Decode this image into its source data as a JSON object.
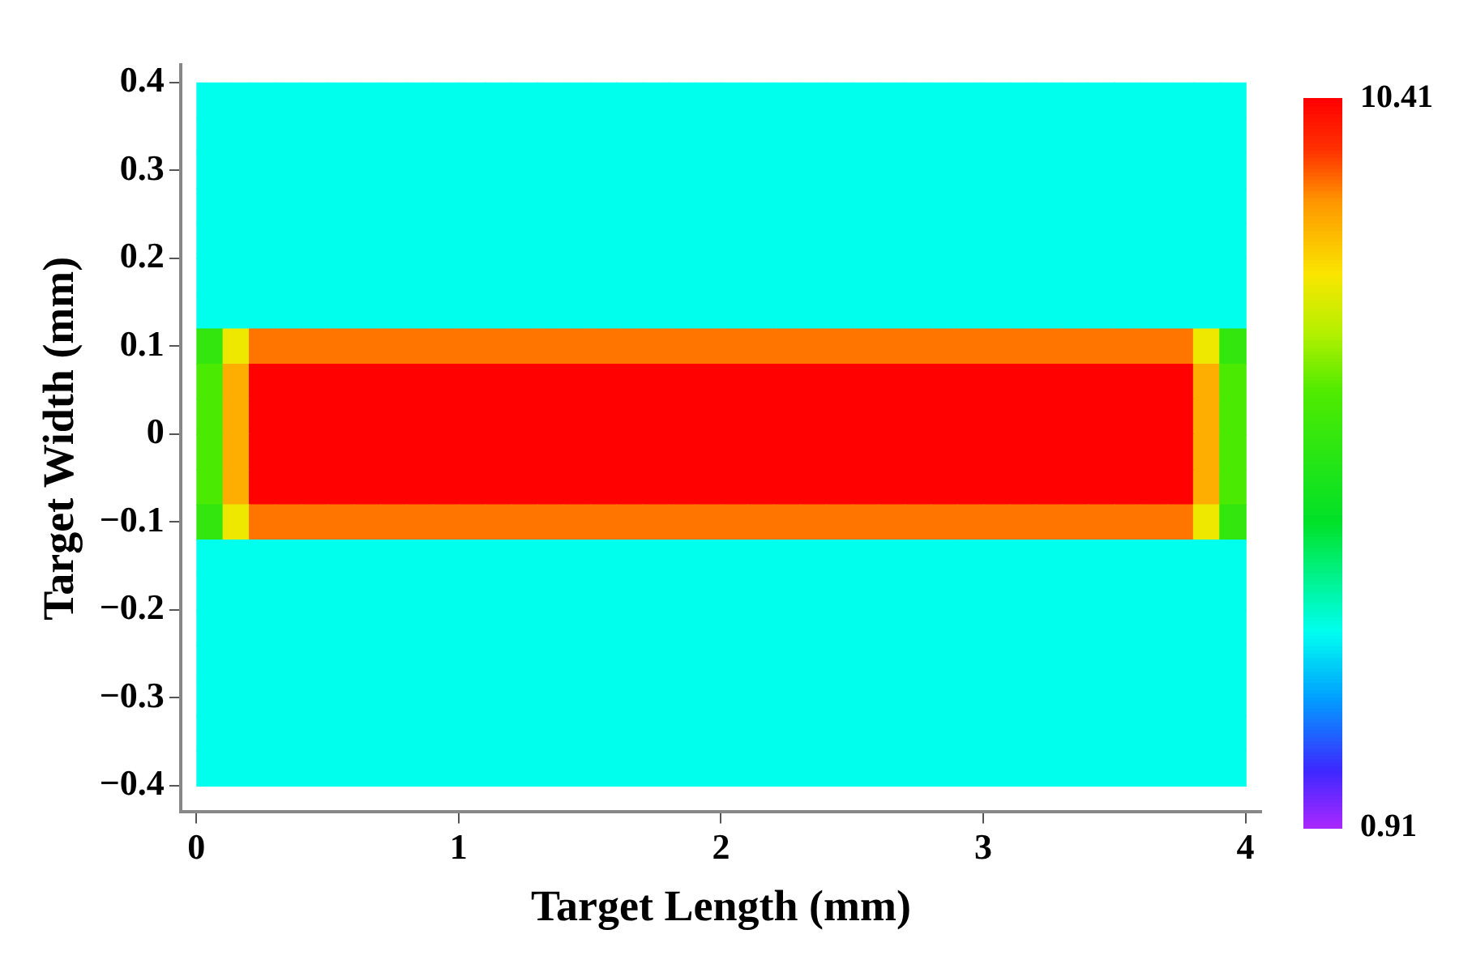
{
  "chart_data": {
    "type": "heatmap",
    "xlabel": "Target Length (mm)",
    "ylabel": "Target Width (mm)",
    "x": [
      0.05,
      0.15,
      0.25,
      0.35,
      0.45,
      0.55,
      0.65,
      0.75,
      0.85,
      0.95,
      1.05,
      1.15,
      1.25,
      1.35,
      1.45,
      1.55,
      1.65,
      1.75,
      1.85,
      1.95,
      2.05,
      2.15,
      2.25,
      2.35,
      2.45,
      2.55,
      2.65,
      2.75,
      2.85,
      2.95,
      3.05,
      3.15,
      3.25,
      3.35,
      3.45,
      3.55,
      3.65,
      3.75,
      3.85,
      3.95
    ],
    "y": [
      0.38,
      0.34,
      0.3,
      0.26,
      0.22,
      0.18,
      0.14,
      0.1,
      0.06,
      0.02,
      -0.02,
      -0.06,
      -0.1,
      -0.14,
      -0.18,
      -0.22,
      -0.26,
      -0.3,
      -0.34,
      -0.38
    ],
    "cells": [
      [
        3.5,
        3.5,
        3.5,
        3.5,
        3.5,
        3.5,
        3.5,
        3.5,
        3.5,
        3.5,
        3.5,
        3.5,
        3.5,
        3.5,
        3.5,
        3.5,
        3.5,
        3.5,
        3.5,
        3.5,
        3.5,
        3.5,
        3.5,
        3.5,
        3.5,
        3.5,
        3.5,
        3.5,
        3.5,
        3.5,
        3.5,
        3.5,
        3.5,
        3.5,
        3.5,
        3.5,
        3.5,
        3.5,
        3.5,
        3.5
      ],
      [
        3.5,
        3.5,
        3.5,
        3.5,
        3.5,
        3.5,
        3.5,
        3.5,
        3.5,
        3.5,
        3.5,
        3.5,
        3.5,
        3.5,
        3.5,
        3.5,
        3.5,
        3.5,
        3.5,
        3.5,
        3.5,
        3.5,
        3.5,
        3.5,
        3.5,
        3.5,
        3.5,
        3.5,
        3.5,
        3.5,
        3.5,
        3.5,
        3.5,
        3.5,
        3.5,
        3.5,
        3.5,
        3.5,
        3.5,
        3.5
      ],
      [
        3.5,
        3.5,
        3.5,
        3.5,
        3.5,
        3.5,
        3.5,
        3.5,
        3.5,
        3.5,
        3.5,
        3.5,
        3.5,
        3.5,
        3.5,
        3.5,
        3.5,
        3.5,
        3.5,
        3.5,
        3.5,
        3.5,
        3.5,
        3.5,
        3.5,
        3.5,
        3.5,
        3.5,
        3.5,
        3.5,
        3.5,
        3.5,
        3.5,
        3.5,
        3.5,
        3.5,
        3.5,
        3.5,
        3.5,
        3.5
      ],
      [
        3.5,
        3.5,
        3.5,
        3.5,
        3.5,
        3.5,
        3.5,
        3.5,
        3.5,
        3.5,
        3.5,
        3.5,
        3.5,
        3.5,
        3.5,
        3.5,
        3.5,
        3.5,
        3.5,
        3.5,
        3.5,
        3.5,
        3.5,
        3.5,
        3.5,
        3.5,
        3.5,
        3.5,
        3.5,
        3.5,
        3.5,
        3.5,
        3.5,
        3.5,
        3.5,
        3.5,
        3.5,
        3.5,
        3.5,
        3.5
      ],
      [
        3.5,
        3.5,
        3.5,
        3.5,
        3.5,
        3.5,
        3.5,
        3.5,
        3.5,
        3.5,
        3.5,
        3.5,
        3.5,
        3.5,
        3.5,
        3.5,
        3.5,
        3.5,
        3.5,
        3.5,
        3.5,
        3.5,
        3.5,
        3.5,
        3.5,
        3.5,
        3.5,
        3.5,
        3.5,
        3.5,
        3.5,
        3.5,
        3.5,
        3.5,
        3.5,
        3.5,
        3.5,
        3.5,
        3.5,
        3.5
      ],
      [
        3.5,
        3.5,
        3.5,
        3.5,
        3.5,
        3.5,
        3.5,
        3.5,
        3.5,
        3.5,
        3.5,
        3.5,
        3.5,
        3.5,
        3.5,
        3.5,
        3.5,
        3.5,
        3.5,
        3.5,
        3.5,
        3.5,
        3.5,
        3.5,
        3.5,
        3.5,
        3.5,
        3.5,
        3.5,
        3.5,
        3.5,
        3.5,
        3.5,
        3.5,
        3.5,
        3.5,
        3.5,
        3.5,
        3.5,
        3.5
      ],
      [
        3.5,
        3.5,
        3.5,
        3.5,
        3.5,
        3.5,
        3.5,
        3.5,
        3.5,
        3.5,
        3.5,
        3.5,
        3.5,
        3.5,
        3.5,
        3.5,
        3.5,
        3.5,
        3.5,
        3.5,
        3.5,
        3.5,
        3.5,
        3.5,
        3.5,
        3.5,
        3.5,
        3.5,
        3.5,
        3.5,
        3.5,
        3.5,
        3.5,
        3.5,
        3.5,
        3.5,
        3.5,
        3.5,
        3.5,
        3.5
      ],
      [
        6,
        8,
        9.3,
        9.3,
        9.3,
        9.3,
        9.3,
        9.3,
        9.3,
        9.3,
        9.3,
        9.3,
        9.3,
        9.3,
        9.3,
        9.3,
        9.3,
        9.3,
        9.3,
        9.3,
        9.3,
        9.3,
        9.3,
        9.3,
        9.3,
        9.3,
        9.3,
        9.3,
        9.3,
        9.3,
        9.3,
        9.3,
        9.3,
        9.3,
        9.3,
        9.3,
        9.3,
        9.3,
        8,
        6
      ],
      [
        6.5,
        8.8,
        10.4,
        10.4,
        10.4,
        10.4,
        10.4,
        10.4,
        10.4,
        10.4,
        10.4,
        10.4,
        10.4,
        10.4,
        10.4,
        10.4,
        10.4,
        10.4,
        10.4,
        10.4,
        10.4,
        10.4,
        10.4,
        10.4,
        10.4,
        10.4,
        10.4,
        10.4,
        10.4,
        10.4,
        10.4,
        10.4,
        10.4,
        10.4,
        10.4,
        10.4,
        10.4,
        10.4,
        8.8,
        6.5
      ],
      [
        6.5,
        8.8,
        10.4,
        10.4,
        10.4,
        10.4,
        10.4,
        10.4,
        10.4,
        10.4,
        10.4,
        10.4,
        10.4,
        10.4,
        10.4,
        10.4,
        10.4,
        10.4,
        10.4,
        10.4,
        10.4,
        10.4,
        10.4,
        10.4,
        10.4,
        10.4,
        10.4,
        10.4,
        10.4,
        10.4,
        10.4,
        10.4,
        10.4,
        10.4,
        10.4,
        10.4,
        10.4,
        10.4,
        8.8,
        6.5
      ],
      [
        6.5,
        8.8,
        10.4,
        10.4,
        10.4,
        10.4,
        10.4,
        10.4,
        10.4,
        10.4,
        10.4,
        10.4,
        10.4,
        10.4,
        10.4,
        10.4,
        10.4,
        10.4,
        10.4,
        10.4,
        10.4,
        10.4,
        10.4,
        10.4,
        10.4,
        10.4,
        10.4,
        10.4,
        10.4,
        10.4,
        10.4,
        10.4,
        10.4,
        10.4,
        10.4,
        10.4,
        10.4,
        10.4,
        8.8,
        6.5
      ],
      [
        6.5,
        8.8,
        10.4,
        10.4,
        10.4,
        10.4,
        10.4,
        10.4,
        10.4,
        10.4,
        10.4,
        10.4,
        10.4,
        10.4,
        10.4,
        10.4,
        10.4,
        10.4,
        10.4,
        10.4,
        10.4,
        10.4,
        10.4,
        10.4,
        10.4,
        10.4,
        10.4,
        10.4,
        10.4,
        10.4,
        10.4,
        10.4,
        10.4,
        10.4,
        10.4,
        10.4,
        10.4,
        10.4,
        8.8,
        6.5
      ],
      [
        6,
        8,
        9.3,
        9.3,
        9.3,
        9.3,
        9.3,
        9.3,
        9.3,
        9.3,
        9.3,
        9.3,
        9.3,
        9.3,
        9.3,
        9.3,
        9.3,
        9.3,
        9.3,
        9.3,
        9.3,
        9.3,
        9.3,
        9.3,
        9.3,
        9.3,
        9.3,
        9.3,
        9.3,
        9.3,
        9.3,
        9.3,
        9.3,
        9.3,
        9.3,
        9.3,
        9.3,
        9.3,
        8,
        6
      ],
      [
        3.5,
        3.5,
        3.5,
        3.5,
        3.5,
        3.5,
        3.5,
        3.5,
        3.5,
        3.5,
        3.5,
        3.5,
        3.5,
        3.5,
        3.5,
        3.5,
        3.5,
        3.5,
        3.5,
        3.5,
        3.5,
        3.5,
        3.5,
        3.5,
        3.5,
        3.5,
        3.5,
        3.5,
        3.5,
        3.5,
        3.5,
        3.5,
        3.5,
        3.5,
        3.5,
        3.5,
        3.5,
        3.5,
        3.5,
        3.5
      ],
      [
        3.5,
        3.5,
        3.5,
        3.5,
        3.5,
        3.5,
        3.5,
        3.5,
        3.5,
        3.5,
        3.5,
        3.5,
        3.5,
        3.5,
        3.5,
        3.5,
        3.5,
        3.5,
        3.5,
        3.5,
        3.5,
        3.5,
        3.5,
        3.5,
        3.5,
        3.5,
        3.5,
        3.5,
        3.5,
        3.5,
        3.5,
        3.5,
        3.5,
        3.5,
        3.5,
        3.5,
        3.5,
        3.5,
        3.5,
        3.5
      ],
      [
        3.5,
        3.5,
        3.5,
        3.5,
        3.5,
        3.5,
        3.5,
        3.5,
        3.5,
        3.5,
        3.5,
        3.5,
        3.5,
        3.5,
        3.5,
        3.5,
        3.5,
        3.5,
        3.5,
        3.5,
        3.5,
        3.5,
        3.5,
        3.5,
        3.5,
        3.5,
        3.5,
        3.5,
        3.5,
        3.5,
        3.5,
        3.5,
        3.5,
        3.5,
        3.5,
        3.5,
        3.5,
        3.5,
        3.5,
        3.5
      ],
      [
        3.5,
        3.5,
        3.5,
        3.5,
        3.5,
        3.5,
        3.5,
        3.5,
        3.5,
        3.5,
        3.5,
        3.5,
        3.5,
        3.5,
        3.5,
        3.5,
        3.5,
        3.5,
        3.5,
        3.5,
        3.5,
        3.5,
        3.5,
        3.5,
        3.5,
        3.5,
        3.5,
        3.5,
        3.5,
        3.5,
        3.5,
        3.5,
        3.5,
        3.5,
        3.5,
        3.5,
        3.5,
        3.5,
        3.5,
        3.5
      ],
      [
        3.5,
        3.5,
        3.5,
        3.5,
        3.5,
        3.5,
        3.5,
        3.5,
        3.5,
        3.5,
        3.5,
        3.5,
        3.5,
        3.5,
        3.5,
        3.5,
        3.5,
        3.5,
        3.5,
        3.5,
        3.5,
        3.5,
        3.5,
        3.5,
        3.5,
        3.5,
        3.5,
        3.5,
        3.5,
        3.5,
        3.5,
        3.5,
        3.5,
        3.5,
        3.5,
        3.5,
        3.5,
        3.5,
        3.5,
        3.5
      ],
      [
        3.5,
        3.5,
        3.5,
        3.5,
        3.5,
        3.5,
        3.5,
        3.5,
        3.5,
        3.5,
        3.5,
        3.5,
        3.5,
        3.5,
        3.5,
        3.5,
        3.5,
        3.5,
        3.5,
        3.5,
        3.5,
        3.5,
        3.5,
        3.5,
        3.5,
        3.5,
        3.5,
        3.5,
        3.5,
        3.5,
        3.5,
        3.5,
        3.5,
        3.5,
        3.5,
        3.5,
        3.5,
        3.5,
        3.5,
        3.5
      ],
      [
        3.5,
        3.5,
        3.5,
        3.5,
        3.5,
        3.5,
        3.5,
        3.5,
        3.5,
        3.5,
        3.5,
        3.5,
        3.5,
        3.5,
        3.5,
        3.5,
        3.5,
        3.5,
        3.5,
        3.5,
        3.5,
        3.5,
        3.5,
        3.5,
        3.5,
        3.5,
        3.5,
        3.5,
        3.5,
        3.5,
        3.5,
        3.5,
        3.5,
        3.5,
        3.5,
        3.5,
        3.5,
        3.5,
        3.5,
        3.5
      ]
    ],
    "xlim": [
      -0.06,
      4.06
    ],
    "ylim": [
      -0.43,
      0.42
    ],
    "xticks": [
      0,
      1,
      2,
      3,
      4
    ],
    "yticks": [
      {
        "value": -0.4,
        "label": "−0.4"
      },
      {
        "value": -0.3,
        "label": "−0.3"
      },
      {
        "value": -0.2,
        "label": "−0.2"
      },
      {
        "value": -0.1,
        "label": "−0.1"
      },
      0,
      0.1,
      0.2,
      0.3,
      0.4
    ],
    "clim": [
      0.91,
      10.41
    ],
    "cticks": [
      0.91,
      10.41
    ],
    "grid": false
  }
}
